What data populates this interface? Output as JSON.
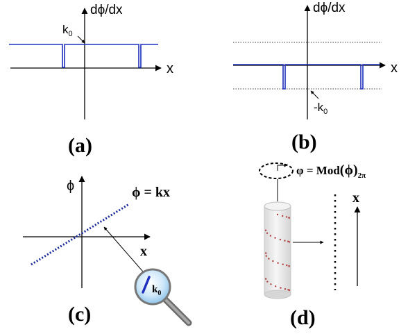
{
  "panels": {
    "a": {
      "caption": "(a)",
      "y_label": "dϕ/dx",
      "x_label": "x",
      "level_label": "k",
      "level_subscript": "0"
    },
    "b": {
      "caption": "(b)",
      "y_label": "dϕ/dx",
      "x_label": "x",
      "level_label": "-k",
      "level_subscript": "0"
    },
    "c": {
      "caption": "(c)",
      "y_label": "ϕ",
      "x_label": "x",
      "line_label": "ϕ = kx",
      "magnifier_label": "k",
      "magnifier_subscript": "0"
    },
    "d": {
      "caption": "(d)",
      "formula_lhs": "φ = Mod",
      "formula_arg": "(ϕ)",
      "formula_subscript": "2π",
      "x_label": "x"
    }
  },
  "colors": {
    "axis": "#000000",
    "signal": "#1f2fbf",
    "dotted_line": "#1a2a9a",
    "magnifier_lens": "#bfe0f7",
    "magnifier_rim": "#777777",
    "cylinder_fill": "#ececec",
    "cylinder_dots": "#b04040"
  },
  "icons": {
    "magnifier": "magnifier-icon",
    "arrow": "arrow-icon"
  }
}
